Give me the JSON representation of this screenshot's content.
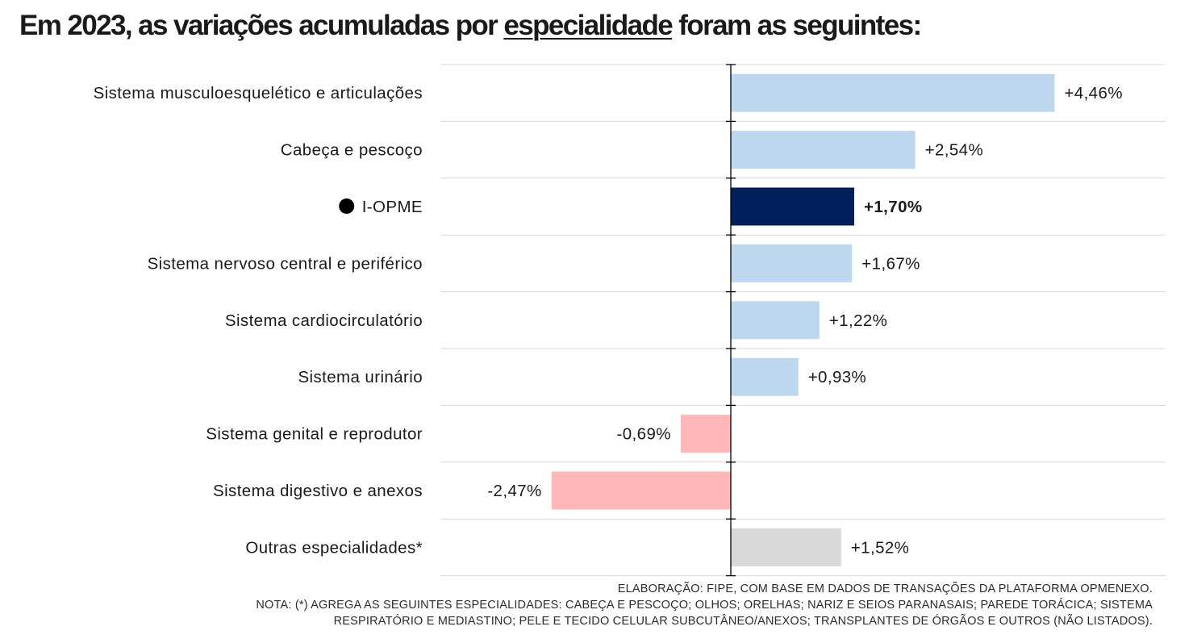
{
  "title": {
    "prefix": "Em 2023, as variações acumuladas por ",
    "emphasis": "especialidade",
    "suffix": " foram as seguintes:"
  },
  "colors": {
    "positive": "#bdd7ee",
    "negative": "#ffb7b7",
    "highlight": "#00205b",
    "other": "#d9d9d9",
    "text": "#1a1a1a",
    "grid": "#d9d9d9"
  },
  "chart_data": {
    "type": "bar",
    "orientation": "horizontal",
    "categories": [
      "Sistema musculoesquelético e articulações",
      "Cabeça e pescoço",
      "I-OPME",
      "Sistema nervoso central e periférico",
      "Sistema cardiocirculatório",
      "Sistema urinário",
      "Sistema genital e reprodutor",
      "Sistema digestivo e anexos",
      "Outras especialidades*"
    ],
    "values": [
      4.46,
      2.54,
      1.7,
      1.67,
      1.22,
      0.93,
      -0.69,
      -2.47,
      1.52
    ],
    "value_labels": [
      "+4,46%",
      "+2,54%",
      "+1,70%",
      "+1,67%",
      "+1,22%",
      "+0,93%",
      "-0,69%",
      "-2,47%",
      "+1,52%"
    ],
    "highlight_index": 2,
    "other_index": 8,
    "xlim": [
      -4.0,
      6.0
    ],
    "grid": true
  },
  "footnotes": {
    "source": "ELABORAÇÃO: FIPE, COM BASE EM DADOS DE TRANSAÇÕES DA PLATAFORMA OPMENEXO.",
    "note_line1": "NOTA: (*) AGREGA AS SEGUINTES ESPECIALIDADES: CABEÇA E PESCOÇO; OLHOS; ORELHAS; NARIZ E SEIOS PARANASAIS; PAREDE TORÁCICA; SISTEMA",
    "note_line2": "RESPIRATÓRIO E MEDIASTINO; PELE E TECIDO CELULAR SUBCUTÂNEO/ANEXOS; TRANSPLANTES DE ÓRGÃOS E OUTROS (NÃO LISTADOS)."
  }
}
